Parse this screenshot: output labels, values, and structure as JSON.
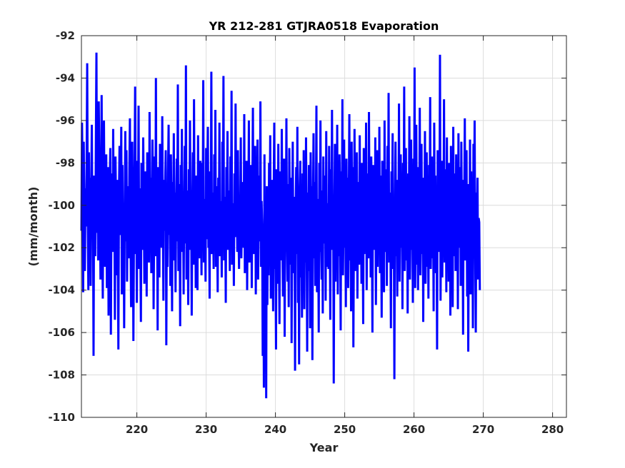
{
  "chart_data": {
    "type": "line",
    "title": "YR 212-281 GTJRA0518 Evaporation",
    "xlabel": "Year",
    "ylabel": "(mm/month)",
    "xlim": [
      212,
      282
    ],
    "ylim": [
      -110,
      -92
    ],
    "xticks": [
      220,
      230,
      240,
      250,
      260,
      270,
      280
    ],
    "yticks": [
      -110,
      -108,
      -106,
      -104,
      -102,
      -100,
      -98,
      -96,
      -94,
      -92
    ],
    "xtick_labels": [
      "220",
      "230",
      "240",
      "250",
      "260",
      "270",
      "280"
    ],
    "ytick_labels": [
      "-110",
      "-108",
      "-106",
      "-104",
      "-102",
      "-100",
      "-98",
      "-96",
      "-94",
      "-92"
    ],
    "grid": true,
    "series": [
      {
        "color": "#0000ff",
        "x_start": 212,
        "x_step_months": 1,
        "values": [
          -101.2,
          -96.1,
          -98.4,
          -104.1,
          -97.0,
          -100.3,
          -103.1,
          -99.2,
          -101.0,
          -98.0,
          -93.3,
          -100.5,
          -104.0,
          -97.5,
          -101.8,
          -98.7,
          -103.8,
          -99.4,
          -96.2,
          -101.5,
          -100.0,
          -107.1,
          -98.6,
          -100.9,
          -102.4,
          -97.1,
          -92.8,
          -101.3,
          -98.9,
          -102.6,
          -95.1,
          -97.9,
          -100.2,
          -103.5,
          -99.8,
          -94.8,
          -101.1,
          -104.4,
          -97.8,
          -96.0,
          -100.7,
          -102.9,
          -99.3,
          -97.6,
          -103.9,
          -100.8,
          -98.2,
          -105.2,
          -101.6,
          -99.0,
          -97.3,
          -106.1,
          -100.4,
          -98.5,
          -102.2,
          -96.4,
          -101.9,
          -99.7,
          -105.4,
          -97.7,
          -100.1,
          -103.3,
          -98.8,
          -102.0,
          -106.8,
          -99.5,
          -97.2,
          -101.4,
          -100.6,
          -96.3,
          -104.2,
          -98.1,
          -102.8,
          -99.9,
          -105.8,
          -100.3,
          -96.5,
          -101.7,
          -97.4,
          -103.6,
          -99.1,
          -100.9,
          -102.5,
          -98.3,
          -95.9,
          -101.2,
          -104.8,
          -99.6,
          -97.0,
          -100.2,
          -106.4,
          -101.0,
          -98.6,
          -94.4,
          -102.3,
          -99.4,
          -104.6,
          -97.9,
          -100.5,
          -95.3,
          -103.0,
          -99.2,
          -101.8,
          -105.5,
          -98.0,
          -100.7,
          -102.1,
          -96.8,
          -99.8,
          -103.7,
          -101.3,
          -98.4,
          -100.0,
          -104.3,
          -97.5,
          -101.5,
          -99.0,
          -102.7,
          -95.6,
          -100.4,
          -98.7,
          -103.2,
          -101.1,
          -96.9,
          -99.3,
          -104.9,
          -100.8,
          -97.7,
          -102.4,
          -94.0,
          -101.6,
          -99.5,
          -105.9,
          -98.2,
          -100.1,
          -103.4,
          -97.1,
          -101.9,
          -99.7,
          -102.0,
          -95.8,
          -100.6,
          -104.5,
          -98.8,
          -101.2,
          -99.1,
          -97.4,
          -106.6,
          -100.3,
          -102.9,
          -98.5,
          -96.2,
          -101.4,
          -99.9,
          -103.8,
          -97.6,
          -100.9,
          -105.0,
          -98.9,
          -101.0,
          -96.6,
          -102.6,
          -99.4,
          -104.1,
          -100.2,
          -97.8,
          -101.7,
          -94.3,
          -103.1,
          -99.0,
          -100.5,
          -105.7,
          -98.1,
          -101.3,
          -96.4,
          -102.2,
          -99.6,
          -104.2,
          -100.0,
          -97.2,
          -101.8,
          -93.4,
          -103.5,
          -99.3,
          -100.7,
          -104.7,
          -98.3,
          -102.1,
          -96.0,
          -101.1,
          -99.8,
          -105.2,
          -100.4,
          -97.5,
          -102.8,
          -95.0,
          -101.5,
          -99.2,
          -103.9,
          -98.6,
          -100.1,
          -104.0,
          -96.7,
          -101.9,
          -99.5,
          -102.5,
          -97.9,
          -100.6,
          -103.3,
          -98.0,
          -101.2,
          -94.1,
          -102.7,
          -99.7,
          -100.3,
          -103.6,
          -97.3,
          -101.6,
          -99.0,
          -96.3,
          -102.0,
          -100.8,
          -104.4,
          -98.4,
          -101.0,
          -93.7,
          -102.3,
          -99.4,
          -100.5,
          -103.0,
          -97.6,
          -101.4,
          -95.5,
          -102.9,
          -99.1,
          -100.9,
          -104.1,
          -98.7,
          -101.7,
          -96.1,
          -102.4,
          -99.8,
          -100.2,
          -103.4,
          -97.0,
          -101.3,
          -93.9,
          -102.6,
          -99.6,
          -100.0,
          -104.6,
          -98.2,
          -101.8,
          -96.5,
          -102.1,
          -99.3,
          -100.7,
          -103.1,
          -97.7,
          -101.1,
          -94.6,
          -102.8,
          -99.9,
          -100.4,
          -103.8,
          -98.5,
          -101.5,
          -95.2,
          -100.9,
          -99.0,
          -102.2,
          -97.4,
          -101.2,
          -103.0,
          -99.5,
          -100.6,
          -96.8,
          -102.5,
          -100.1,
          -101.9,
          -98.9,
          -102.0,
          -95.7,
          -103.2,
          -100.3,
          -101.0,
          -97.9,
          -104.0,
          -99.7,
          -100.8,
          -96.0,
          -102.7,
          -99.2,
          -101.6,
          -98.1,
          -103.9,
          -99.6,
          -95.4,
          -102.3,
          -100.0,
          -101.4,
          -97.2,
          -104.2,
          -99.4,
          -101.2,
          -96.9,
          -103.5,
          -100.5,
          -98.6,
          -101.7,
          -95.1,
          -102.9,
          -99.8,
          -100.9,
          -107.1,
          -101.3,
          -108.6,
          -97.6,
          -106.3,
          -102.1,
          -109.1,
          -99.1,
          -104.7,
          -100.2,
          -103.3,
          -98.0,
          -101.0,
          -96.7,
          -104.4,
          -100.6,
          -98.8,
          -102.4,
          -105.0,
          -99.3,
          -96.1,
          -103.0,
          -101.6,
          -106.8,
          -98.3,
          -100.4,
          -103.7,
          -97.1,
          -101.8,
          -105.6,
          -99.9,
          -98.4,
          -102.6,
          -96.4,
          -101.1,
          -104.3,
          -100.7,
          -97.8,
          -106.2,
          -99.5,
          -102.0,
          -95.9,
          -101.5,
          -103.6,
          -99.0,
          -104.8,
          -97.3,
          -100.1,
          -102.8,
          -98.7,
          -106.5,
          -100.9,
          -97.0,
          -103.2,
          -101.2,
          -99.6,
          -107.8,
          -100.3,
          -98.2,
          -102.3,
          -96.3,
          -104.6,
          -101.4,
          -107.5,
          -99.2,
          -97.9,
          -103.4,
          -100.8,
          -105.3,
          -98.5,
          -101.9,
          -97.4,
          -104.9,
          -100.0,
          -102.7,
          -96.8,
          -101.3,
          -106.9,
          -99.4,
          -103.1,
          -98.1,
          -100.6,
          -105.8,
          -97.5,
          -101.7,
          -99.1,
          -107.3,
          -100.2,
          -96.6,
          -102.5,
          -98.9,
          -103.8,
          -101.0,
          -95.3,
          -104.1,
          -99.7,
          -100.5,
          -106.0,
          -98.0,
          -102.2,
          -96.0,
          -101.6,
          -103.5,
          -99.3,
          -105.1,
          -97.7,
          -100.9,
          -101.8,
          -98.6,
          -104.5,
          -96.5,
          -102.9,
          -99.9,
          -101.1,
          -103.0,
          -97.2,
          -100.4,
          -105.4,
          -98.3,
          -101.5,
          -95.5,
          -102.1,
          -99.5,
          -108.4,
          -100.7,
          -97.1,
          -103.6,
          -98.8,
          -101.2,
          -96.2,
          -104.2,
          -99.0,
          -102.4,
          -97.6,
          -100.0,
          -105.9,
          -98.4,
          -101.9,
          -95.0,
          -103.3,
          -100.6,
          -96.9,
          -102.0,
          -99.2,
          -104.8,
          -97.8,
          -101.3,
          -98.7,
          -103.9,
          -100.1,
          -95.7,
          -102.6,
          -99.4,
          -105.0,
          -97.0,
          -101.7,
          -98.2,
          -106.7,
          -100.8,
          -96.4,
          -103.1,
          -99.6,
          -101.0,
          -97.5,
          -104.4,
          -100.3,
          -98.9,
          -102.8,
          -96.7,
          -101.4,
          -99.1,
          -103.7,
          -98.0,
          -100.5,
          -105.6,
          -97.3,
          -102.3,
          -99.8,
          -101.6,
          -96.1,
          -104.0,
          -100.2,
          -98.5,
          -102.5,
          -95.6,
          -101.1,
          -99.3,
          -103.4,
          -97.7,
          -100.9,
          -106.0,
          -98.1,
          -101.8,
          -99.5,
          -102.1,
          -96.8,
          -104.7,
          -100.4,
          -97.4,
          -102.9,
          -99.0,
          -101.5,
          -96.3,
          -103.2,
          -98.6,
          -100.6,
          -105.3,
          -97.9,
          -101.2,
          -99.7,
          -104.1,
          -96.0,
          -102.2,
          -100.0,
          -98.3,
          -103.8,
          -97.2,
          -101.9,
          -94.7,
          -102.7,
          -99.4,
          -100.7,
          -105.8,
          -98.4,
          -101.3,
          -96.6,
          -103.0,
          -99.9,
          -108.2,
          -100.1,
          -97.0,
          -102.4,
          -99.2,
          -104.3,
          -98.8,
          -101.6,
          -95.2,
          -103.6,
          -100.3,
          -97.6,
          -102.0,
          -99.6,
          -104.9,
          -98.0,
          -101.0,
          -94.4,
          -103.1,
          -100.5,
          -97.3,
          -102.6,
          -99.1,
          -105.1,
          -98.5,
          -101.4,
          -95.8,
          -103.5,
          -100.8,
          -96.9,
          -102.1,
          -99.3,
          -104.6,
          -97.8,
          -101.7,
          -93.5,
          -103.9,
          -100.0,
          -96.2,
          -102.8,
          -99.8,
          -104.0,
          -98.2,
          -101.1,
          -95.4,
          -103.3,
          -100.6,
          -97.1,
          -102.3,
          -99.0,
          -105.5,
          -98.7,
          -101.5,
          -96.5,
          -103.7,
          -100.2,
          -97.5,
          -102.9,
          -99.4,
          -104.4,
          -98.1,
          -101.8,
          -94.9,
          -103.0,
          -100.9,
          -97.7,
          -102.5,
          -99.7,
          -105.0,
          -96.1,
          -101.2,
          -98.6,
          -103.2,
          -100.4,
          -106.8,
          -97.4,
          -101.9,
          -99.5,
          -102.2,
          -92.9,
          -104.5,
          -100.1,
          -97.9,
          -103.4,
          -99.1,
          -101.3,
          -95.0,
          -102.7,
          -100.7,
          -98.3,
          -104.1,
          -96.8,
          -101.6,
          -99.3,
          -103.6,
          -98.0,
          -100.3,
          -105.2,
          -97.2,
          -101.0,
          -99.8,
          -104.8,
          -96.3,
          -102.4,
          -100.5,
          -98.5,
          -103.1,
          -97.6,
          -101.7,
          -99.2,
          -104.9,
          -96.6,
          -102.0,
          -100.8,
          -98.2,
          -103.8,
          -97.0,
          -101.4,
          -99.6,
          -106.1,
          -98.8,
          -100.2,
          -95.9,
          -102.6,
          -101.1,
          -97.4,
          -104.3,
          -99.0,
          -106.9,
          -100.4,
          -102.8,
          -96.9,
          -104.2,
          -98.4,
          -101.8,
          -99.7,
          -105.8,
          -97.1,
          -100.9,
          -96.0,
          -102.1,
          -106.0,
          -99.4,
          -101.5,
          -98.7,
          -103.5,
          -100.6,
          -100.8,
          -104.0
        ]
      }
    ]
  }
}
